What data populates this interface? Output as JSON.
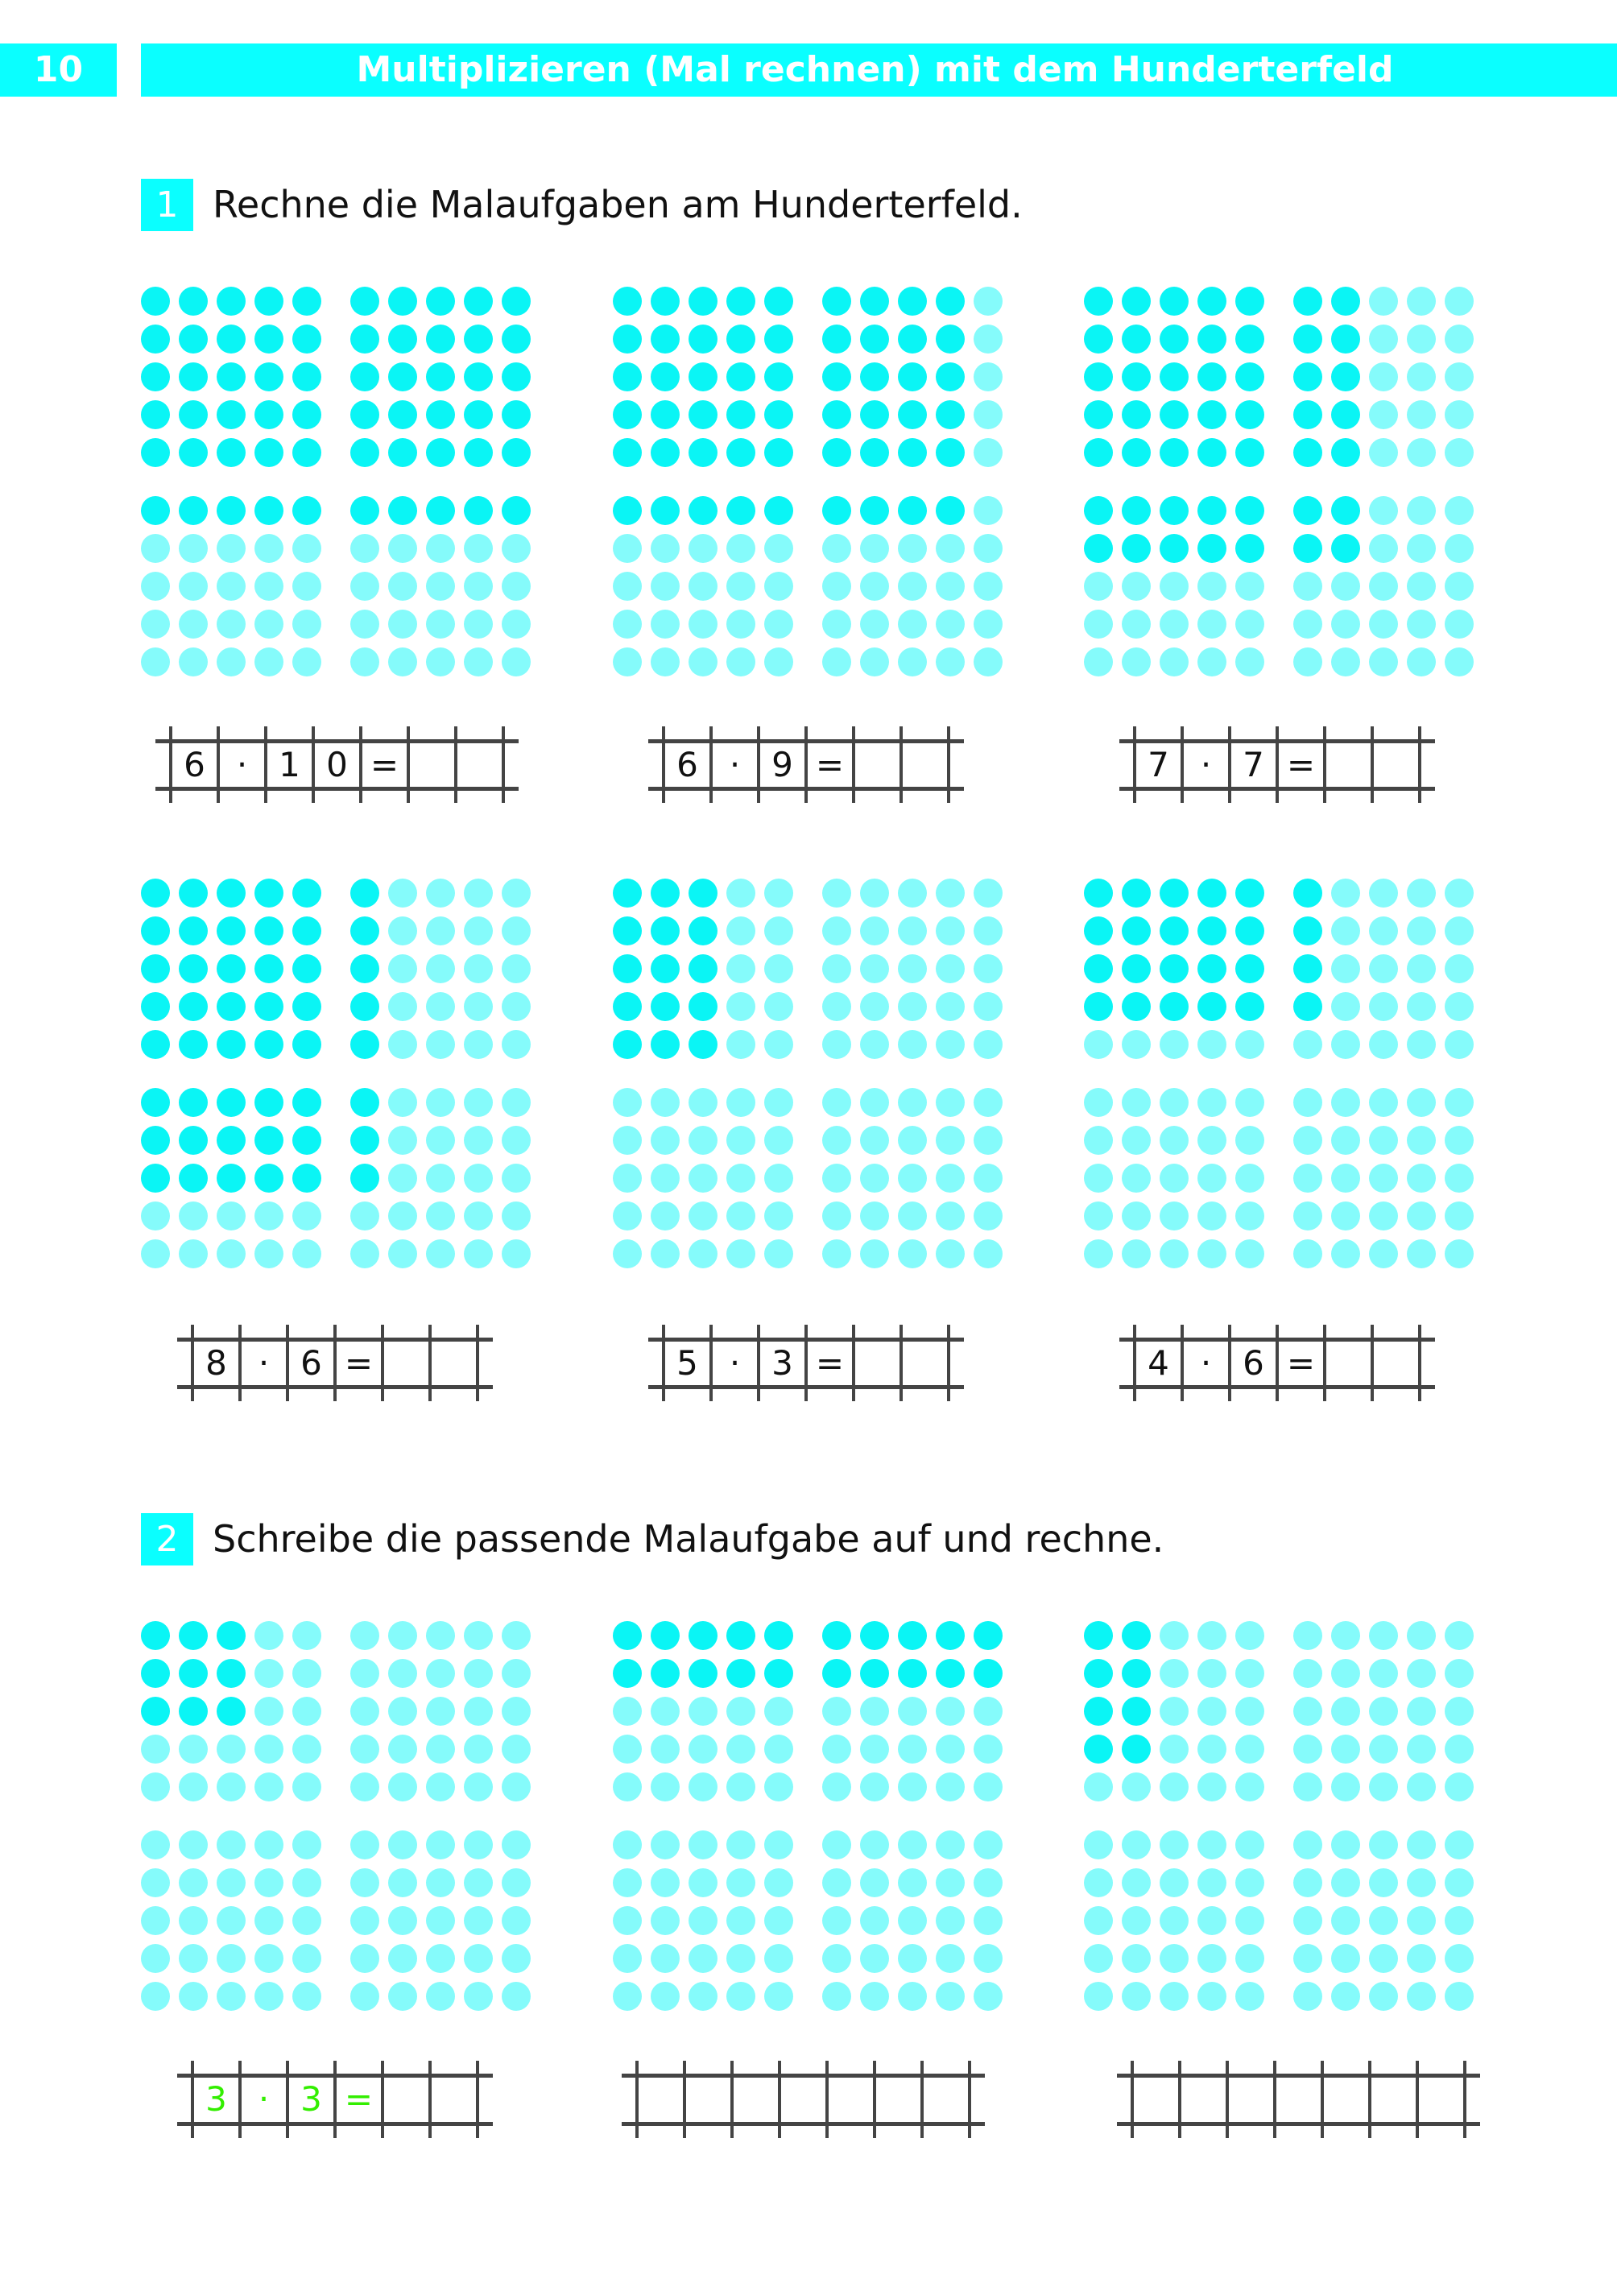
{
  "header": {
    "page_number": "10",
    "title": "Multiplizieren (Mal rechnen) mit dem Hunderterfeld"
  },
  "colors": {
    "accent": "#0affff",
    "dot_filled": "#0af5f5",
    "dot_empty": "#85fbfb",
    "example_text": "#33ee00"
  },
  "sections": [
    {
      "number": "1",
      "instruction": "Rechne die Malaufgaben am Hunderterfeld."
    },
    {
      "number": "2",
      "instruction": "Schreibe die passende Malaufgabe auf und rechne."
    }
  ],
  "fields": [
    {
      "filled": {
        "rows": 6,
        "cols": 10
      },
      "answer": [
        "6",
        "·",
        "1",
        "0",
        "=",
        "",
        ""
      ]
    },
    {
      "filled": {
        "rows": 6,
        "cols": 9
      },
      "answer": [
        "6",
        "·",
        "9",
        "=",
        "",
        ""
      ]
    },
    {
      "filled": {
        "rows": 7,
        "cols": 7
      },
      "answer": [
        "7",
        "·",
        "7",
        "=",
        "",
        ""
      ]
    },
    {
      "filled": {
        "rows": 8,
        "cols": 6
      },
      "answer": [
        "8",
        "·",
        "6",
        "=",
        "",
        ""
      ]
    },
    {
      "filled": {
        "rows": 5,
        "cols": 3
      },
      "answer": [
        "5",
        "·",
        "3",
        "=",
        "",
        ""
      ]
    },
    {
      "filled": {
        "rows": 4,
        "cols": 6
      },
      "answer": [
        "4",
        "·",
        "6",
        "=",
        "",
        ""
      ]
    },
    {
      "filled": {
        "rows": 3,
        "cols": 3
      },
      "answer": [
        "3",
        "·",
        "3",
        "=",
        "",
        ""
      ],
      "example": true
    },
    {
      "filled": {
        "rows": 2,
        "cols": 10
      },
      "answer": [
        "",
        "",
        "",
        "",
        "",
        "",
        ""
      ]
    },
    {
      "filled": {
        "rows": 4,
        "cols": 2
      },
      "answer": [
        "",
        "",
        "",
        "",
        "",
        "",
        ""
      ]
    }
  ]
}
